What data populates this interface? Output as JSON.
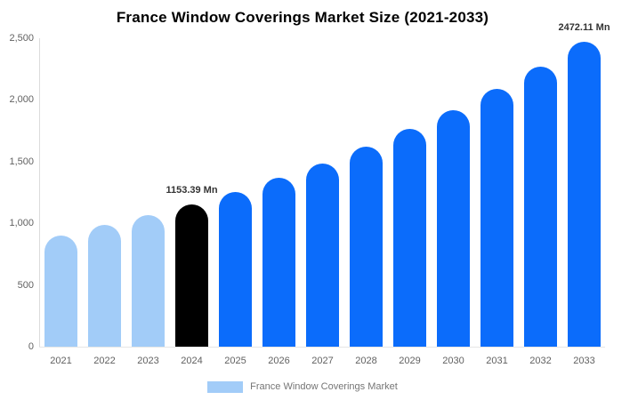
{
  "title": "France Window Coverings Market Size (2021-2033)",
  "legend": {
    "label": "France Window Coverings Market",
    "swatch_color": "#a2ccf8"
  },
  "colors": {
    "historical": "#a2ccf8",
    "highlight": "#000000",
    "forecast": "#0b6cfb",
    "axis_line": "#dcdcdc",
    "baseline": "#e6e6e6",
    "tick_text": "#616161",
    "legend_text": "#757575",
    "annotation_text": "#333333",
    "title_text": "#000000",
    "background": "#ffffff"
  },
  "chart_data": {
    "type": "bar",
    "title": "France Window Coverings Market Size (2021-2033)",
    "unit": "Mn",
    "categories": [
      "2021",
      "2022",
      "2023",
      "2024",
      "2025",
      "2026",
      "2027",
      "2028",
      "2029",
      "2030",
      "2031",
      "2032",
      "2033"
    ],
    "values": [
      900,
      985,
      1065,
      1153.39,
      1255.3,
      1366.3,
      1487.1,
      1618.5,
      1761.6,
      1917.3,
      2086.8,
      2271.3,
      2472.11
    ],
    "color_roles": [
      "historical",
      "historical",
      "historical",
      "highlight",
      "forecast",
      "forecast",
      "forecast",
      "forecast",
      "forecast",
      "forecast",
      "forecast",
      "forecast",
      "forecast"
    ],
    "annotations": [
      {
        "category": "2024",
        "text": "1153.39 Mn"
      },
      {
        "category": "2033",
        "text": "2472.11 Mn"
      }
    ],
    "y_ticks": [
      {
        "v": 0,
        "label": "0"
      },
      {
        "v": 500,
        "label": "500"
      },
      {
        "v": 1000,
        "label": "1,000"
      },
      {
        "v": 1500,
        "label": "1,500"
      },
      {
        "v": 2000,
        "label": "2,000"
      },
      {
        "v": 2500,
        "label": "2,500"
      }
    ],
    "ylim": [
      0,
      2500
    ],
    "grid": false,
    "legend_position": "bottom"
  }
}
